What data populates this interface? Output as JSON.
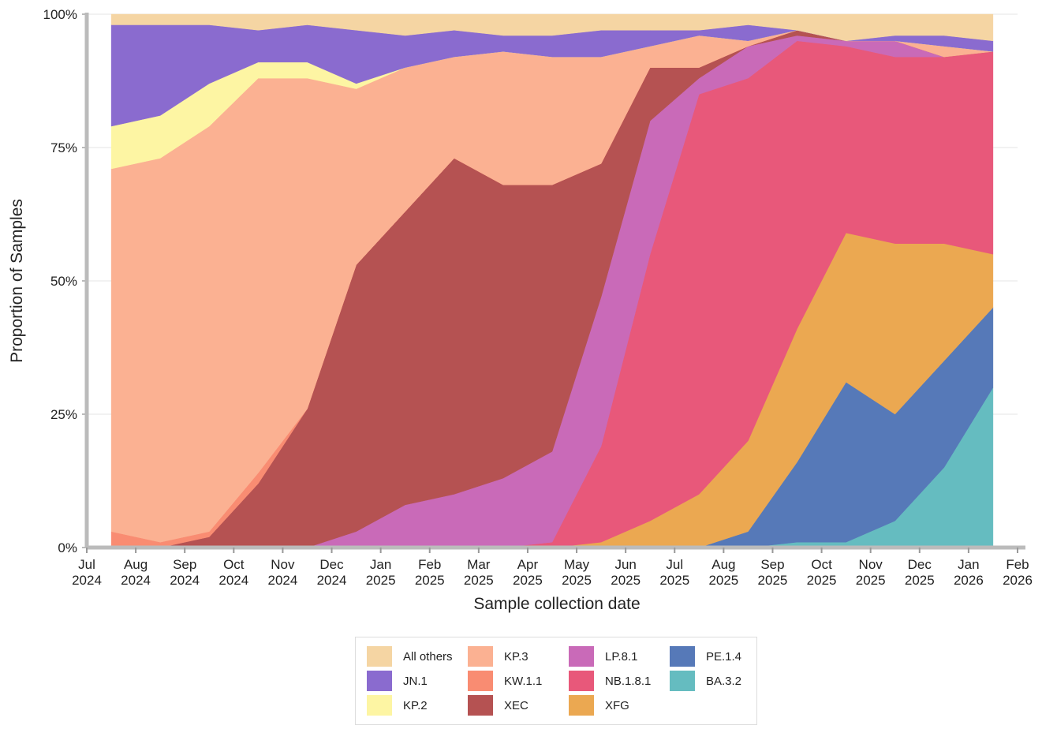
{
  "chart_data": {
    "type": "stacked-area",
    "x_label": "Sample collection date",
    "y_label": "Proportion of Samples",
    "x": [
      "2024-07",
      "2024-08",
      "2024-09",
      "2024-10",
      "2024-11",
      "2024-12",
      "2025-01",
      "2025-02",
      "2025-03",
      "2025-04",
      "2025-05",
      "2025-06",
      "2025-07",
      "2025-08",
      "2025-09",
      "2025-10",
      "2025-11",
      "2025-12",
      "2026-01"
    ],
    "xlim": [
      "2024-07",
      "2026-02"
    ],
    "xticks": [
      {
        "value": "2024-07",
        "label": "Jul 2024"
      },
      {
        "value": "2024-08",
        "label": "Aug 2024"
      },
      {
        "value": "2024-09",
        "label": "Sep 2024"
      },
      {
        "value": "2024-10",
        "label": "Oct 2024"
      },
      {
        "value": "2024-11",
        "label": "Nov 2024"
      },
      {
        "value": "2024-12",
        "label": "Dec 2024"
      },
      {
        "value": "2025-01",
        "label": "Jan 2025"
      },
      {
        "value": "2025-02",
        "label": "Feb 2025"
      },
      {
        "value": "2025-03",
        "label": "Mar 2025"
      },
      {
        "value": "2025-04",
        "label": "Apr 2025"
      },
      {
        "value": "2025-05",
        "label": "May 2025"
      },
      {
        "value": "2025-06",
        "label": "Jun 2025"
      },
      {
        "value": "2025-07",
        "label": "Jul 2025"
      },
      {
        "value": "2025-08",
        "label": "Aug 2025"
      },
      {
        "value": "2025-09",
        "label": "Sep 2025"
      },
      {
        "value": "2025-10",
        "label": "Oct 2025"
      },
      {
        "value": "2025-11",
        "label": "Nov 2025"
      },
      {
        "value": "2025-12",
        "label": "Dec 2025"
      },
      {
        "value": "2026-01",
        "label": "Jan 2026"
      },
      {
        "value": "2026-02",
        "label": "Feb 2026"
      }
    ],
    "ylim": [
      0,
      100
    ],
    "yticks": [
      {
        "value": 0,
        "label": "0%"
      },
      {
        "value": 25,
        "label": "25%"
      },
      {
        "value": 50,
        "label": "50%"
      },
      {
        "value": 75,
        "label": "75%"
      },
      {
        "value": 100,
        "label": "100%"
      }
    ],
    "grid": true,
    "series": [
      {
        "name": "All others",
        "color": "#f5d5a3",
        "values": [
          2,
          2,
          2,
          3,
          2,
          3,
          4,
          3,
          4,
          4,
          3,
          3,
          3,
          2,
          3,
          5,
          4,
          4,
          5
        ]
      },
      {
        "name": "JN.1",
        "color": "#8a6bcf",
        "values": [
          19,
          17,
          11,
          6,
          7,
          10,
          6,
          5,
          3,
          4,
          5,
          3,
          1,
          3,
          0,
          0,
          1,
          2,
          2
        ]
      },
      {
        "name": "KP.2",
        "color": "#fdf5a3",
        "values": [
          8,
          8,
          8,
          3,
          3,
          1,
          0,
          0,
          0,
          0,
          0,
          0,
          0,
          0,
          0,
          0,
          0,
          0,
          0
        ]
      },
      {
        "name": "KP.3",
        "color": "#fbb192",
        "values": [
          68,
          72,
          76,
          74,
          62,
          33,
          27,
          19,
          25,
          24,
          20,
          4,
          6,
          1,
          0,
          0,
          0,
          2,
          0
        ]
      },
      {
        "name": "KW.1.1",
        "color": "#f98c72",
        "values": [
          3,
          1,
          1,
          2,
          0,
          0,
          0,
          0,
          0,
          0,
          0,
          0,
          0,
          0,
          0,
          0,
          0,
          0,
          0
        ]
      },
      {
        "name": "XEC",
        "color": "#b55252",
        "values": [
          0,
          0,
          2,
          12,
          26,
          50,
          55,
          63,
          55,
          50,
          25,
          10,
          2,
          0,
          1,
          0,
          0,
          0,
          0
        ]
      },
      {
        "name": "LP.8.1",
        "color": "#c96ab8",
        "values": [
          0,
          0,
          0,
          0,
          0,
          3,
          8,
          10,
          13,
          17,
          28,
          25,
          3,
          6,
          1,
          1,
          3,
          0,
          0
        ]
      },
      {
        "name": "NB.1.8.1",
        "color": "#e8587a",
        "values": [
          0,
          0,
          0,
          0,
          0,
          0,
          0,
          0,
          0,
          1,
          18,
          50,
          75,
          68,
          54,
          35,
          35,
          35,
          38
        ]
      },
      {
        "name": "XFG",
        "color": "#eba851",
        "values": [
          0,
          0,
          0,
          0,
          0,
          0,
          0,
          0,
          0,
          0,
          1,
          5,
          10,
          17,
          25,
          28,
          32,
          22,
          10
        ]
      },
      {
        "name": "PE.1.4",
        "color": "#5679b8",
        "values": [
          0,
          0,
          0,
          0,
          0,
          0,
          0,
          0,
          0,
          0,
          0,
          0,
          0,
          3,
          15,
          30,
          20,
          20,
          15
        ]
      },
      {
        "name": "BA.3.2",
        "color": "#65bcc0",
        "values": [
          0,
          0,
          0,
          0,
          0,
          0,
          0,
          0,
          0,
          0,
          0,
          0,
          0,
          0,
          1,
          1,
          5,
          15,
          30
        ]
      }
    ]
  }
}
